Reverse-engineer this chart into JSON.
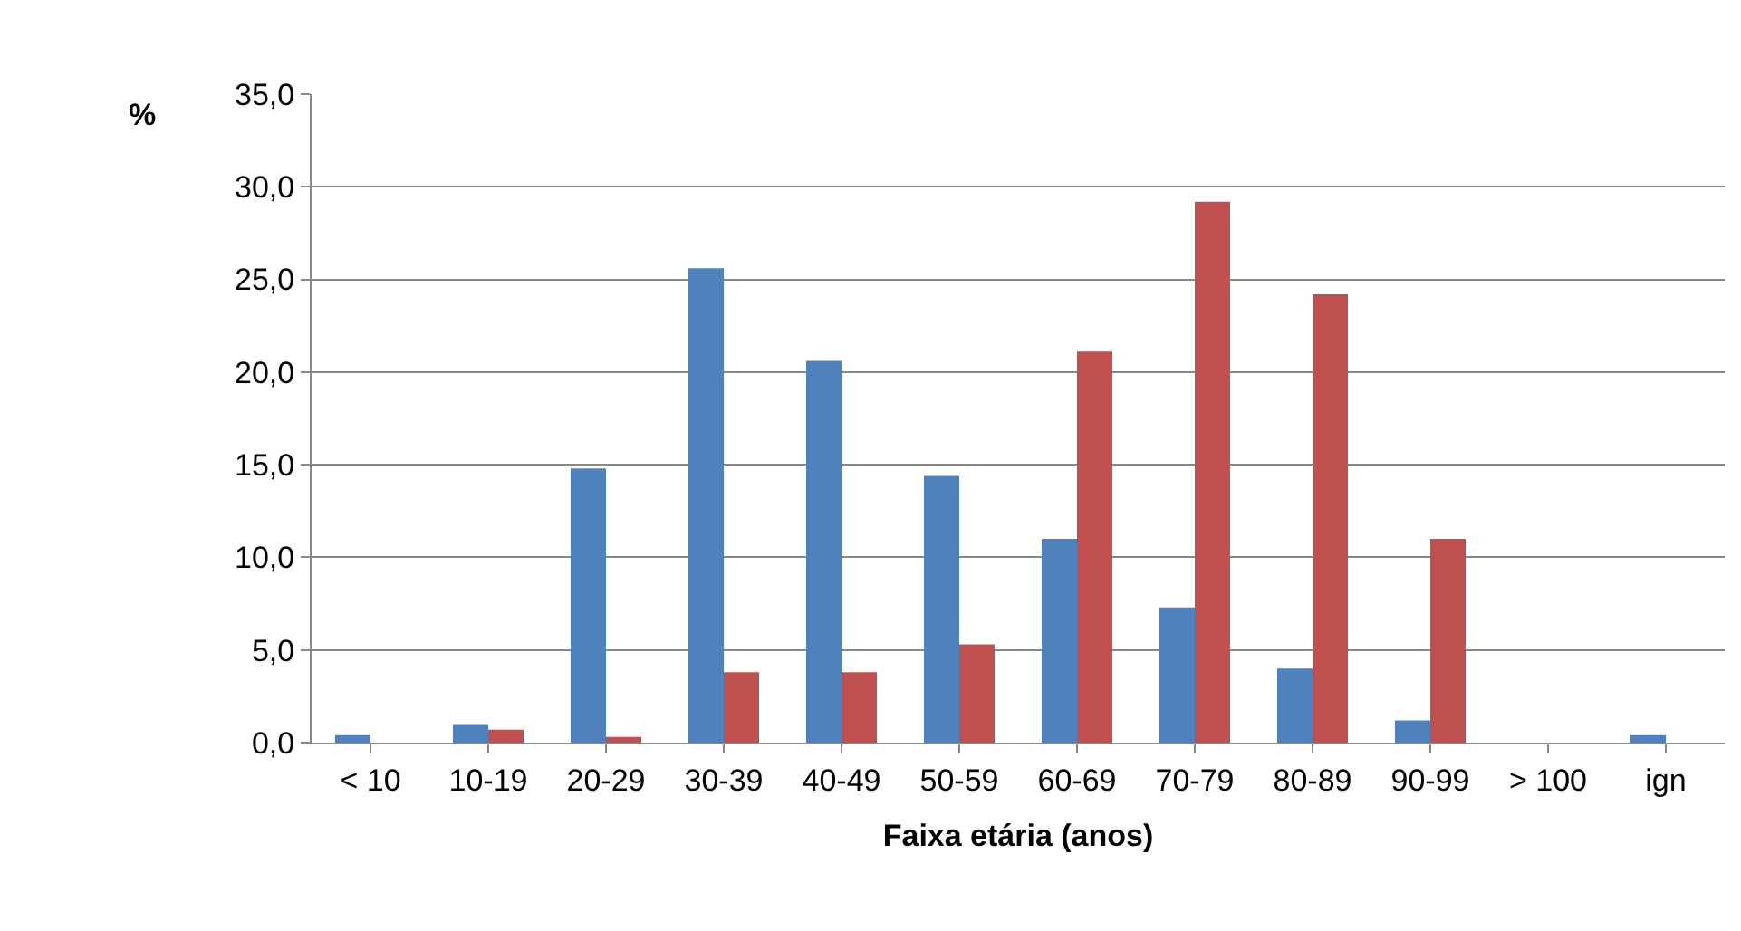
{
  "chart_data": {
    "type": "bar",
    "ylabel": "%",
    "xlabel": "Faixa etária (anos)",
    "categories": [
      "< 10",
      "10-19",
      "20-29",
      "30-39",
      "40-49",
      "50-59",
      "60-69",
      "70-79",
      "80-89",
      "90-99",
      "> 100",
      "ign"
    ],
    "series": [
      {
        "color": "#4f81bd",
        "values": [
          0.4,
          1.0,
          14.8,
          25.6,
          20.6,
          14.4,
          11.0,
          7.3,
          4.0,
          1.2,
          0.0,
          0.4
        ]
      },
      {
        "color": "#c0504d",
        "values": [
          0.0,
          0.7,
          0.3,
          3.8,
          3.8,
          5.3,
          21.1,
          29.2,
          24.2,
          11.0,
          0.0,
          0.0
        ]
      }
    ],
    "ylim": [
      0,
      35
    ],
    "yticks": [
      {
        "value": 0,
        "label": "0,0"
      },
      {
        "value": 5,
        "label": "5,0"
      },
      {
        "value": 10,
        "label": "10,0"
      },
      {
        "value": 15,
        "label": "15,0"
      },
      {
        "value": 20,
        "label": "20,0"
      },
      {
        "value": 25,
        "label": "25,0"
      },
      {
        "value": 30,
        "label": "30,0"
      },
      {
        "value": 35,
        "label": "35,0"
      }
    ],
    "grid": "y"
  }
}
